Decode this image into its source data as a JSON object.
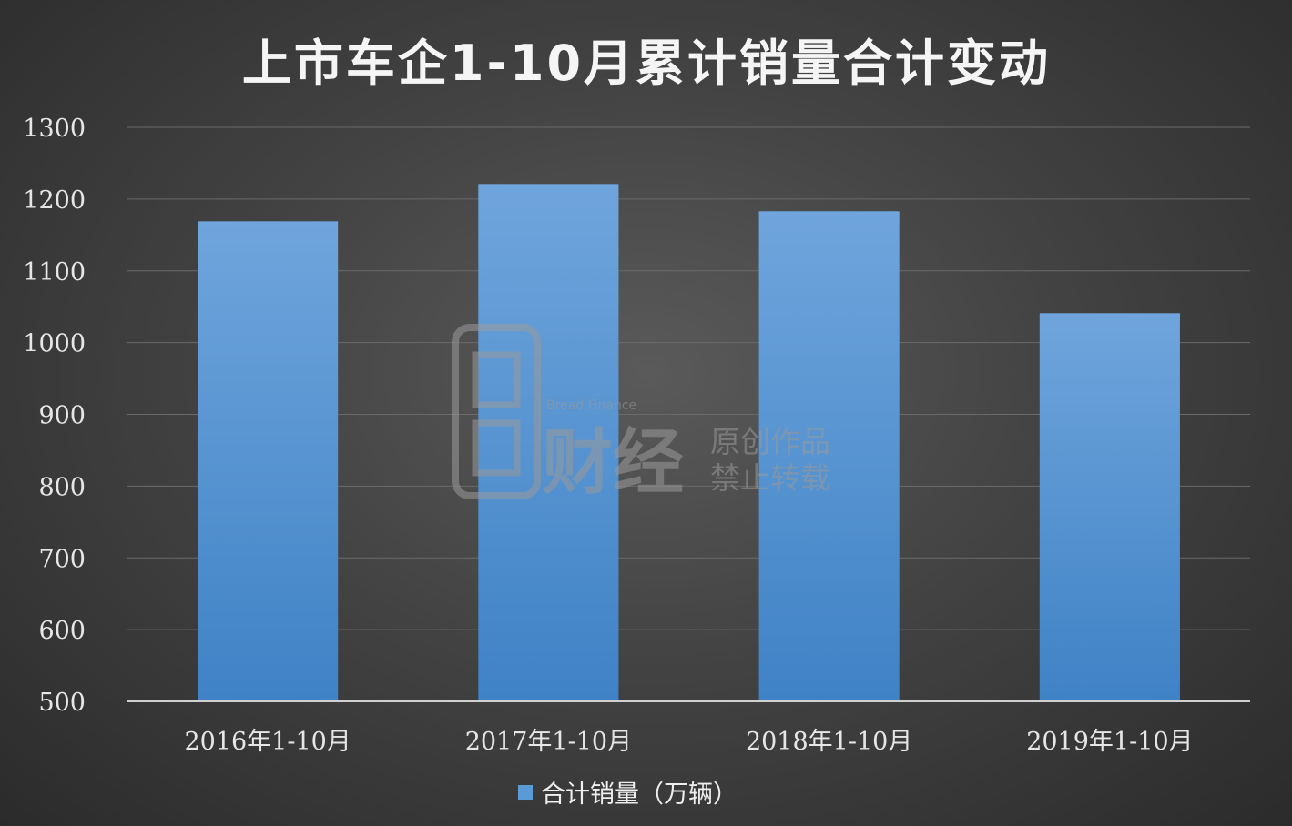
{
  "chart_data": {
    "type": "bar",
    "title": "上市车企1-10月累计销量合计变动",
    "categories": [
      "2016年1-10月",
      "2017年1-10月",
      "2018年1-10月",
      "2019年1-10月"
    ],
    "series": [
      {
        "name": "合计销量（万辆）",
        "values": [
          1169,
          1221,
          1183,
          1041
        ]
      }
    ],
    "ylim": [
      500,
      1300
    ],
    "yticks": [
      "500",
      "600",
      "700",
      "800",
      "900",
      "1000",
      "1100",
      "1200",
      "1300"
    ],
    "grid": true,
    "legend": "bottom-center",
    "colors": {
      "bar_top": "#6fa5dc",
      "bar_bottom": "#3f82c6",
      "legend_marker": "#5b9bd5"
    }
  },
  "watermark": {
    "brand_en": "Bread Finance",
    "brand_cn": "财经",
    "line1": "原创作品",
    "line2": "禁止转载"
  }
}
